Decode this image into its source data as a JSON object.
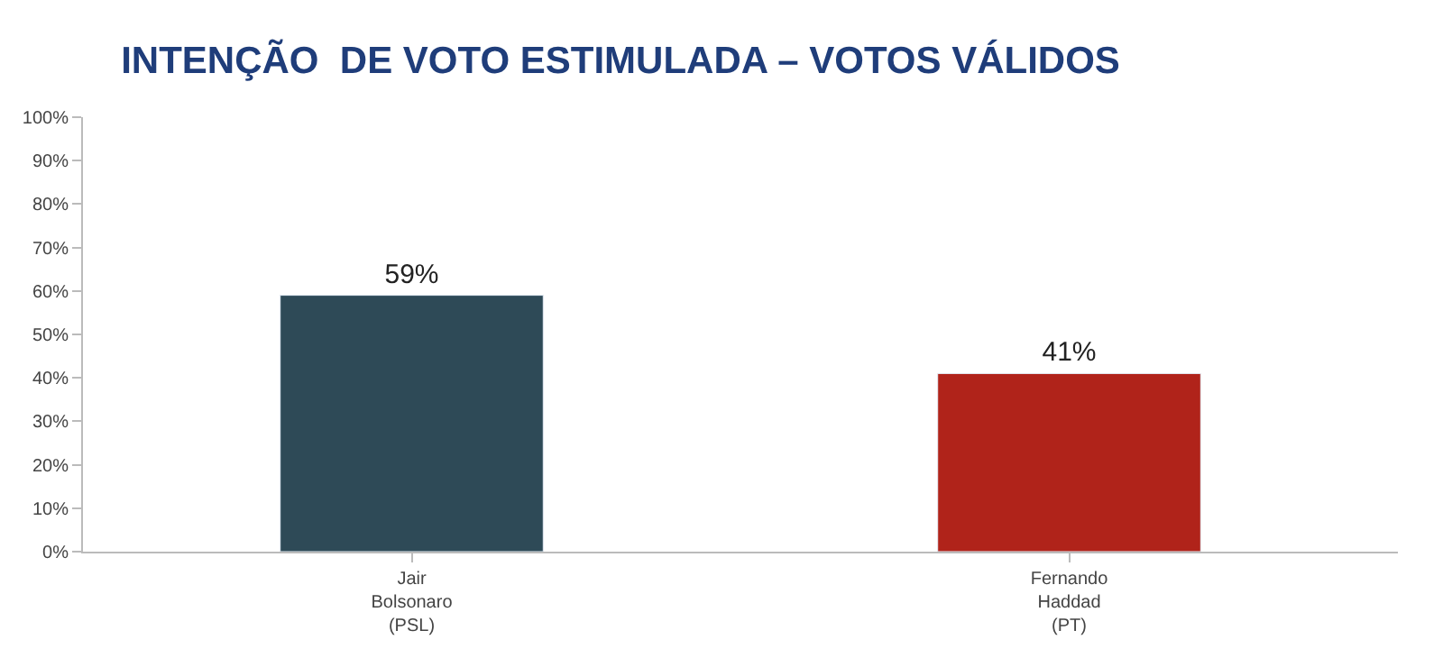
{
  "chart_data": {
    "type": "bar",
    "title": "INTENÇÃO  DE VOTO ESTIMULADA – VOTOS VÁLIDOS",
    "categories": [
      "Jair\nBolsonaro\n(PSL)",
      "Fernando\nHaddad\n(PT)"
    ],
    "values": [
      59,
      41
    ],
    "colors": [
      "#2e4a57",
      "#b0231a"
    ],
    "value_labels": [
      "59%",
      "41%"
    ],
    "ylim": [
      0,
      100
    ],
    "yticks": [
      {
        "value": 0,
        "label": "0%"
      },
      {
        "value": 10,
        "label": "10%"
      },
      {
        "value": 20,
        "label": "20%"
      },
      {
        "value": 30,
        "label": "30%"
      },
      {
        "value": 40,
        "label": "40%"
      },
      {
        "value": 50,
        "label": "50%"
      },
      {
        "value": 60,
        "label": "60%"
      },
      {
        "value": 70,
        "label": "70%"
      },
      {
        "value": 80,
        "label": "80%"
      },
      {
        "value": 90,
        "label": "90%"
      },
      {
        "value": 100,
        "label": "100%"
      }
    ],
    "legend": false
  }
}
